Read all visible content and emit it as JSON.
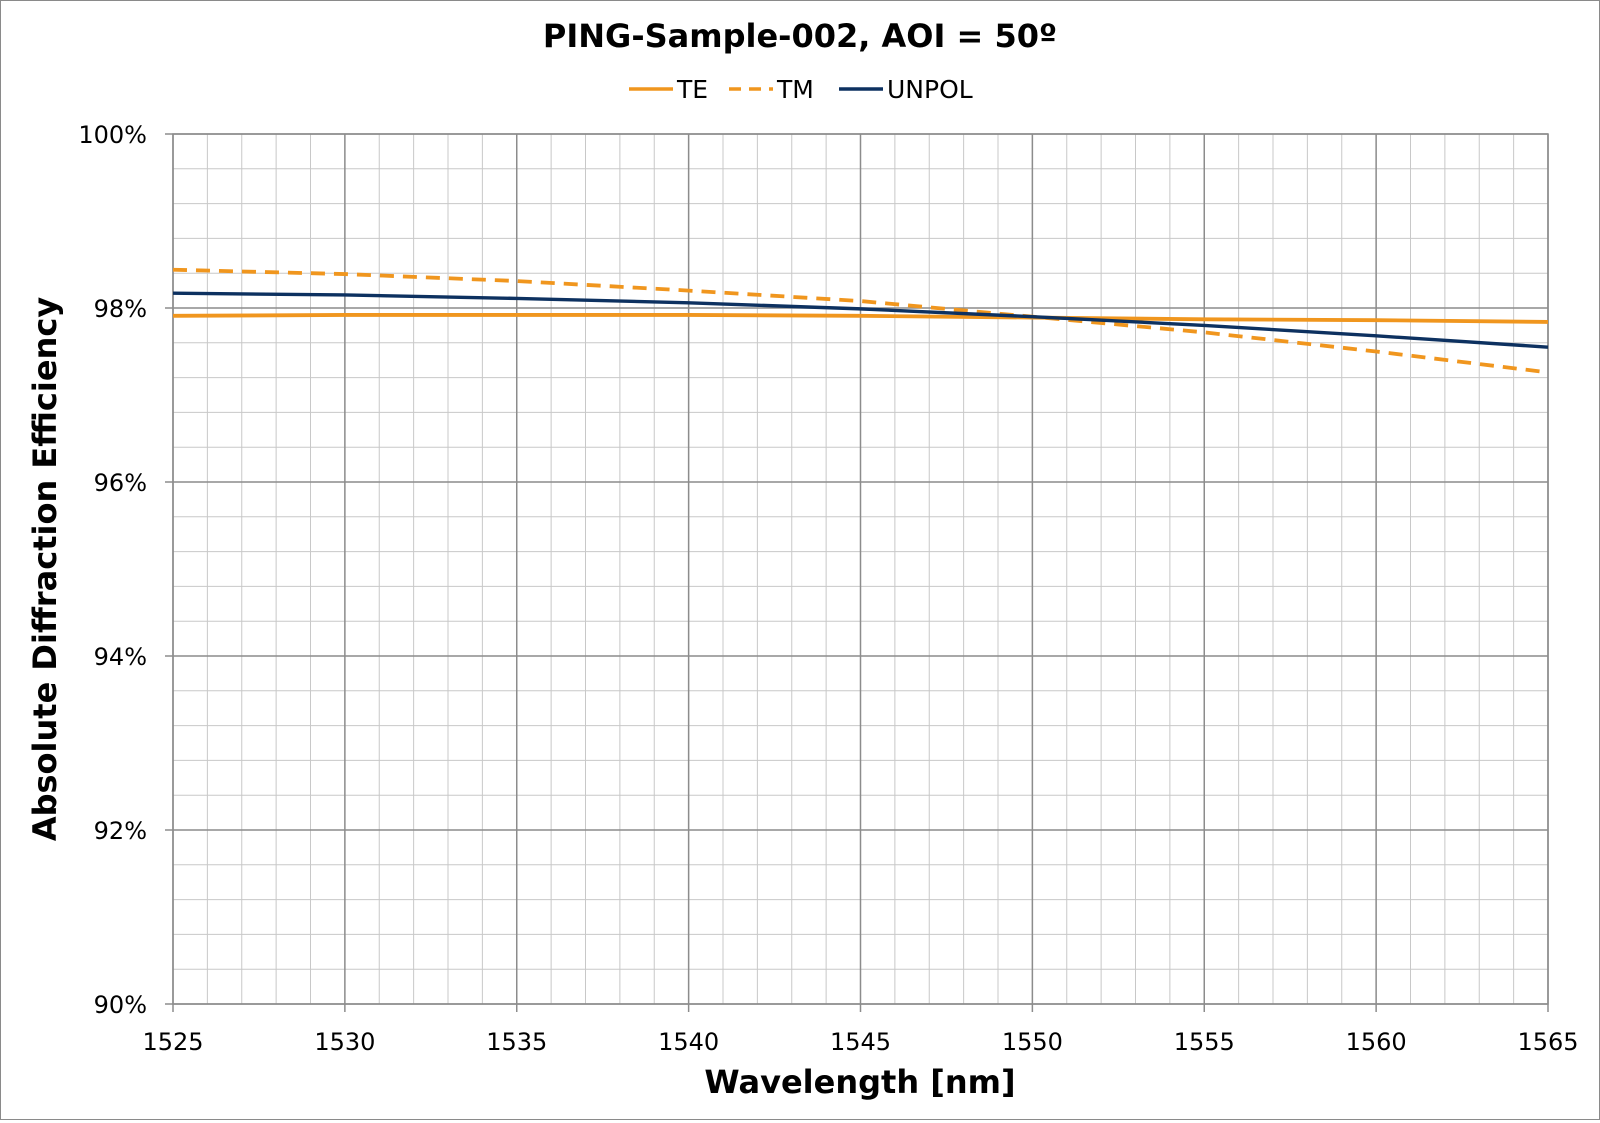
{
  "chart_data": {
    "type": "line",
    "title": "PING-Sample-002, AOI = 50º",
    "xlabel": "Wavelength [nm]",
    "ylabel": "Absolute Diffraction Efficiency",
    "xlim": [
      1525,
      1565
    ],
    "ylim": [
      0.9,
      1.0
    ],
    "x_ticks": [
      1525,
      1530,
      1535,
      1540,
      1545,
      1550,
      1555,
      1560,
      1565
    ],
    "x_tick_labels": [
      "1525",
      "1530",
      "1535",
      "1540",
      "1545",
      "1550",
      "1555",
      "1560",
      "1565"
    ],
    "y_ticks": [
      0.9,
      0.92,
      0.94,
      0.96,
      0.98,
      1.0
    ],
    "y_tick_labels": [
      "90%",
      "92%",
      "94%",
      "96%",
      "98%",
      "100%"
    ],
    "x_minor_step": 1,
    "y_minor_step": 0.004,
    "grid": true,
    "legend_position": "top-center",
    "series": [
      {
        "name": "TE",
        "color": "#f0961e",
        "style": "solid",
        "x": [
          1525,
          1530,
          1535,
          1540,
          1545,
          1550,
          1555,
          1560,
          1565
        ],
        "y": [
          0.9791,
          0.9792,
          0.9792,
          0.9792,
          0.9791,
          0.9789,
          0.9787,
          0.9786,
          0.9784
        ]
      },
      {
        "name": "TM",
        "color": "#f0961e",
        "style": "dashed",
        "x": [
          1525,
          1530,
          1535,
          1540,
          1545,
          1550,
          1555,
          1560,
          1565
        ],
        "y": [
          0.9844,
          0.9839,
          0.9831,
          0.982,
          0.9808,
          0.979,
          0.9772,
          0.975,
          0.9726
        ]
      },
      {
        "name": "UNPOL",
        "color": "#0d3160",
        "style": "solid",
        "x": [
          1525,
          1530,
          1535,
          1540,
          1545,
          1550,
          1555,
          1560,
          1565
        ],
        "y": [
          0.9817,
          0.9815,
          0.9811,
          0.9806,
          0.9799,
          0.979,
          0.978,
          0.9768,
          0.9755
        ]
      }
    ]
  }
}
